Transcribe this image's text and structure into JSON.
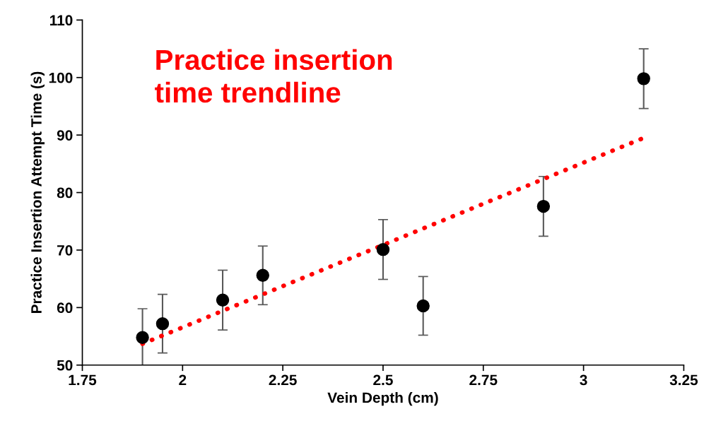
{
  "chart_data": {
    "type": "scatter",
    "xlabel": "Vein Depth (cm)",
    "ylabel": "Practice Insertion Attempt Time (s)",
    "annotations": [
      "Practice insertion\ntime trendline"
    ],
    "xlim": [
      1.75,
      3.25
    ],
    "xticks": [
      1.75,
      2,
      2.25,
      2.5,
      2.75,
      3,
      3.25
    ],
    "ylim": [
      50,
      110
    ],
    "yticks": [
      50,
      60,
      70,
      80,
      90,
      100,
      110
    ],
    "grid": false,
    "legend": false,
    "series": [
      {
        "color": "#000000",
        "marker": "circle",
        "x": [
          1.9,
          1.95,
          2.1,
          2.2,
          2.5,
          2.6,
          2.9,
          3.15
        ],
        "values": [
          54.8,
          57.2,
          61.3,
          65.6,
          70.1,
          60.3,
          77.6,
          99.8
        ],
        "errors": [
          5,
          5.1,
          5.2,
          5.1,
          5.2,
          5.1,
          5.2,
          5.2
        ]
      },
      {
        "type": "line",
        "color": "#ff0000",
        "line_style": "dotted",
        "marker": "none",
        "x": [
          1.9,
          3.15
        ],
        "values": [
          53.7,
          89.5
        ]
      }
    ]
  }
}
